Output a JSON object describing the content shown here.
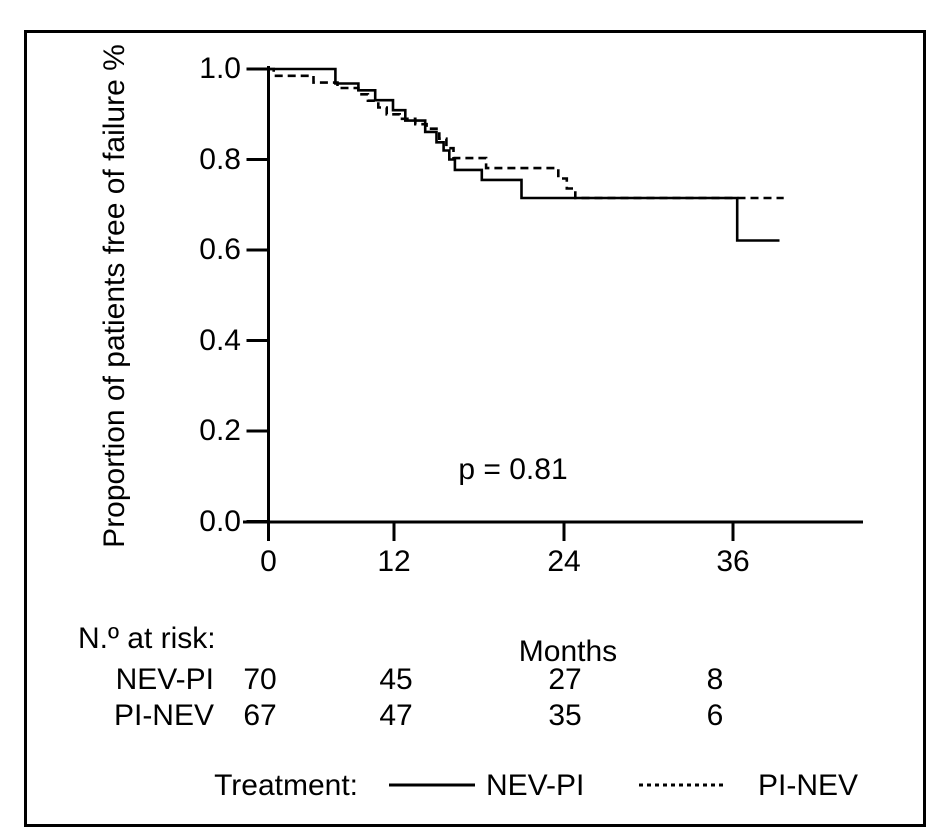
{
  "figure": {
    "background": "#ffffff",
    "line_color": "#000000"
  },
  "chart_data": {
    "type": "line",
    "subtype": "kaplan-meier-step-curves",
    "title": "",
    "xlabel": "Months",
    "ylabel": "Proportion of patients free of failure %",
    "annotation": "p = 0.81",
    "x_ticks": [
      0,
      12,
      24,
      36
    ],
    "y_ticks": [
      "1.0",
      "0.8",
      "0.6",
      "0.4",
      "0.2",
      "0.0"
    ],
    "xlim": [
      0,
      42
    ],
    "ylim": [
      0.0,
      1.0
    ],
    "grid": false,
    "legend_position": "bottom",
    "series": [
      {
        "name": "NEV-PI",
        "style": "solid",
        "color": "#000000",
        "end_time": 39.3,
        "points": [
          [
            0,
            1.0
          ],
          [
            6.4,
            0.968
          ],
          [
            8.6,
            0.953
          ],
          [
            10.2,
            0.931
          ],
          [
            11.9,
            0.909
          ],
          [
            12.8,
            0.886
          ],
          [
            14.2,
            0.861
          ],
          [
            15.0,
            0.838
          ],
          [
            15.5,
            0.82
          ],
          [
            15.9,
            0.8
          ],
          [
            16.3,
            0.777
          ],
          [
            18.2,
            0.755
          ],
          [
            21.0,
            0.715
          ],
          [
            36.3,
            0.621
          ]
        ]
      },
      {
        "name": "PI-NEV",
        "style": "dashed",
        "color": "#000000",
        "end_time": 39.6,
        "points": [
          [
            0,
            1.0
          ],
          [
            0.5,
            0.985
          ],
          [
            4.3,
            0.97
          ],
          [
            6.6,
            0.958
          ],
          [
            8.6,
            0.944
          ],
          [
            9.5,
            0.93
          ],
          [
            10.5,
            0.915
          ],
          [
            11.3,
            0.9
          ],
          [
            12.4,
            0.89
          ],
          [
            13.5,
            0.878
          ],
          [
            14.3,
            0.868
          ],
          [
            15.2,
            0.846
          ],
          [
            15.7,
            0.825
          ],
          [
            16.2,
            0.803
          ],
          [
            18.5,
            0.781
          ],
          [
            23.6,
            0.758
          ],
          [
            24.2,
            0.736
          ],
          [
            24.8,
            0.715
          ]
        ]
      }
    ],
    "risk_table": {
      "heading": "N.º at risk:",
      "times": [
        0,
        12,
        24,
        36
      ],
      "rows": [
        {
          "name": "NEV-PI",
          "counts": [
            "70",
            "45",
            "27",
            "8"
          ]
        },
        {
          "name": "PI-NEV",
          "counts": [
            "67",
            "47",
            "35",
            "6"
          ]
        }
      ]
    },
    "legend": {
      "heading": "Treatment:",
      "entries": [
        {
          "name": "NEV-PI",
          "style": "solid"
        },
        {
          "name": "PI-NEV",
          "style": "dashed"
        }
      ]
    }
  }
}
